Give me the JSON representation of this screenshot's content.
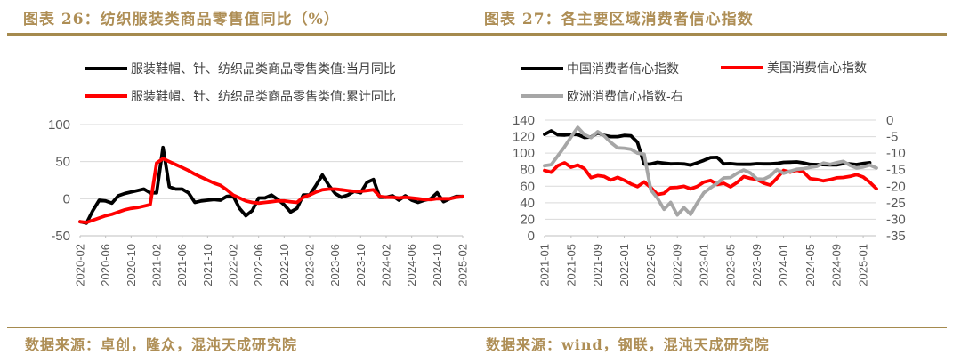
{
  "colors": {
    "accent_gold": "#AE8E55",
    "rule_gold": "#A58A4E",
    "axis_text": "#595959",
    "legend_text": "#3F3F3F",
    "grid_line": "#D9D9D9",
    "axis_line": "#BFBFBF",
    "series_black": "#000000",
    "series_red": "#FF0000",
    "series_gray": "#A6A6A6"
  },
  "panels": [
    {
      "title": "图表 26：纺织服装类商品零售值同比（%）",
      "source": "数据来源：卓创，隆众，混沌天成研究院"
    },
    {
      "title": "图表 27：各主要区域消费者信心指数",
      "source": "数据来源：wind，钢联，混沌天成研究院"
    }
  ],
  "chart_data": [
    {
      "type": "line",
      "title": "纺织服装类商品零售值同比（%）",
      "x_range": "2020-02 to 2025-02, monthly",
      "x_tick_labels": [
        "2020-02",
        "2020-06",
        "2020-10",
        "2021-02",
        "2021-06",
        "2021-10",
        "2022-02",
        "2022-06",
        "2022-10",
        "2023-02",
        "2023-06",
        "2023-10",
        "2024-02",
        "2024-06",
        "2024-10",
        "2025-02"
      ],
      "tick_every": 4,
      "grid": true,
      "legend_position": "top",
      "left_axis": {
        "lim": [
          -50,
          100
        ],
        "ticks": [
          100,
          50,
          0,
          -50
        ]
      },
      "series": [
        {
          "name": "服装鞋帽、针、纺织品类商品零售类值:当月同比",
          "color": "#000000",
          "axis": "left",
          "values": [
            -31,
            -33,
            -16,
            -2,
            -3,
            -6,
            4,
            7,
            9,
            11,
            13,
            8,
            8,
            69,
            16,
            13,
            13,
            8,
            -5,
            -3,
            -2,
            -1,
            -2,
            3,
            4,
            -13,
            -23,
            -16,
            1,
            1,
            5,
            -1,
            -8,
            -18,
            -13,
            5,
            5,
            18,
            32,
            18,
            7,
            2,
            5,
            10,
            8,
            22,
            26,
            2,
            2,
            4,
            -2,
            4,
            -2,
            -5,
            -2,
            0,
            8,
            -4,
            0,
            3,
            3
          ]
        },
        {
          "name": "服装鞋帽、针、纺织品类商品零售类值:累计同比",
          "color": "#FF0000",
          "axis": "left",
          "values": [
            -31,
            -32,
            -29,
            -26,
            -23,
            -21,
            -18,
            -15,
            -13,
            -12,
            -10,
            -8,
            48,
            54,
            50,
            46,
            42,
            38,
            33,
            29,
            25,
            21,
            18,
            12,
            5,
            1,
            -3,
            -5,
            -6,
            -5,
            -4,
            -3,
            -3,
            -4,
            -5,
            2,
            5,
            9,
            12,
            13,
            13,
            12,
            11,
            10,
            10,
            11,
            12,
            3,
            2,
            2,
            1,
            2,
            1,
            0,
            -1,
            -1,
            0,
            0,
            0,
            2,
            3
          ]
        }
      ]
    },
    {
      "type": "line",
      "title": "各主要区域消费者信心指数",
      "x_range": "2021-01 to 2025-03, monthly",
      "x_tick_labels": [
        "2021-01",
        "2021-05",
        "2021-09",
        "2022-01",
        "2022-05",
        "2022-09",
        "2023-01",
        "2023-05",
        "2023-09",
        "2024-01",
        "2024-05",
        "2024-09",
        "2025-01"
      ],
      "tick_every": 4,
      "grid": true,
      "legend_position": "top",
      "left_axis": {
        "lim": [
          0,
          140
        ],
        "ticks": [
          140,
          120,
          100,
          80,
          60,
          40,
          20,
          0
        ]
      },
      "right_axis": {
        "lim": [
          -35,
          0
        ],
        "ticks": [
          0,
          -5,
          -10,
          -15,
          -20,
          -25,
          -30,
          -35
        ]
      },
      "series": [
        {
          "name": "中国消费者信心指数",
          "color": "#000000",
          "axis": "left",
          "values": [
            122.8,
            127,
            122.2,
            121.9,
            122.8,
            122.6,
            119,
            119.5,
            124.5,
            121.5,
            120,
            120,
            121.5,
            121,
            113.2,
            86.7,
            86.8,
            88.9,
            87.9,
            87,
            87.2,
            86.9,
            85.5,
            88.3,
            91.2,
            94.7,
            94.9,
            87,
            87.3,
            86.6,
            86.5,
            86.5,
            87.2,
            87,
            87,
            87.6,
            88.9,
            89.1,
            89.4,
            88.2,
            86.4,
            86.2,
            86,
            85.8,
            85.7,
            87.3,
            86.9,
            86.2,
            87.5,
            88.4,
            null
          ]
        },
        {
          "name": "美国消费信心指数",
          "color": "#FF0000",
          "axis": "left",
          "values": [
            79,
            76.8,
            84.9,
            88.3,
            82.9,
            85.5,
            81.2,
            70.3,
            72.8,
            71.7,
            67.4,
            70.6,
            67.2,
            62.8,
            59.4,
            65.2,
            58.4,
            50,
            51.5,
            58.2,
            58.6,
            59.9,
            56.8,
            59.7,
            64.9,
            67,
            62,
            63.5,
            59.2,
            64.4,
            71.6,
            69.5,
            68.1,
            63.8,
            61.3,
            69.7,
            79,
            76.9,
            79.4,
            77.2,
            69.1,
            68.2,
            66.4,
            67.9,
            70.1,
            70.5,
            71.8,
            74,
            71.1,
            64.7,
            57
          ]
        },
        {
          "name": "欧洲消费信心指数-右",
          "color": "#A6A6A6",
          "axis": "right",
          "values": [
            -13.8,
            -13.5,
            -10.8,
            -8.1,
            -5.1,
            -2.2,
            -4.4,
            -5.3,
            -3.5,
            -4.8,
            -6.8,
            -8.4,
            -8.5,
            -8.8,
            -10,
            -10.3,
            -21.1,
            -23.6,
            -27,
            -24.9,
            -28.7,
            -26.5,
            -28.5,
            -25,
            -22,
            -20.5,
            -19.1,
            -17.5,
            -17.4,
            -16.1,
            -15.1,
            -16,
            -17.8,
            -17.9,
            -16.9,
            -15,
            -16.1,
            -15.5,
            -14.9,
            -14.7,
            -14.3,
            -14,
            -13,
            -13.4,
            -12.9,
            -12.5,
            -13.7,
            -14.5,
            -14.2,
            -13.6,
            -14.5
          ]
        }
      ]
    }
  ]
}
